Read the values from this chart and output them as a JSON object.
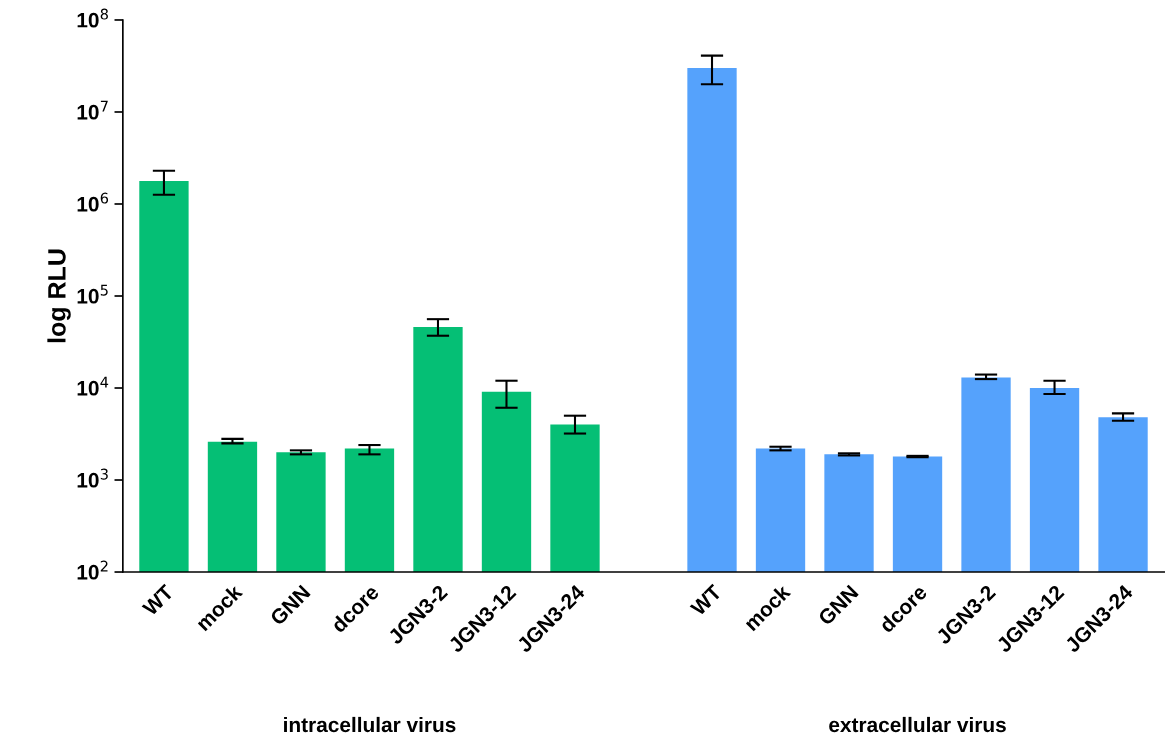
{
  "chart_data": {
    "type": "bar",
    "ylabel": "log RLU",
    "log": "y",
    "legend": false,
    "grid": false,
    "categories": [
      "WT",
      "mock",
      "GNN",
      "dcore",
      "JGN3-2",
      "JGN3-12",
      "JGN3-24",
      null,
      "WT",
      "mock",
      "GNN",
      "dcore",
      "JGN3-2",
      "JGN3-12",
      "JGN3-24"
    ],
    "ylim": [
      100,
      100000000
    ],
    "yticks": [
      {
        "value": 100,
        "label": "10$^{2}$"
      },
      {
        "value": 1000,
        "label": "10$^{3}$"
      },
      {
        "value": 10000,
        "label": "10$^{4}$"
      },
      {
        "value": 100000,
        "label": "10$^{5}$"
      },
      {
        "value": 1000000,
        "label": "10$^{6}$"
      },
      {
        "value": 10000000,
        "label": "10$^{7}$"
      },
      {
        "value": 100000000,
        "label": "10$^{8}$"
      }
    ],
    "series": [
      {
        "name": "intracellular virus",
        "color": "#05bf75",
        "values": [
          1780000,
          2600,
          2000,
          2200,
          46000,
          9100,
          4000,
          null,
          null,
          null,
          null,
          null,
          null,
          null,
          null
        ],
        "errors": [
          [
            1260000,
            2300000
          ],
          [
            2500,
            2800
          ],
          [
            1900,
            2100
          ],
          [
            1900,
            2400
          ],
          [
            37000,
            56000
          ],
          [
            6100,
            12000
          ],
          [
            3200,
            5000
          ],
          null,
          null,
          null,
          null,
          null,
          null,
          null,
          null
        ]
      },
      {
        "name": "extracellular virus",
        "color": "#55a2fc",
        "values": [
          null,
          null,
          null,
          null,
          null,
          null,
          null,
          null,
          30000000,
          2200,
          1900,
          1800,
          13000,
          10000,
          4800
        ],
        "errors": [
          null,
          null,
          null,
          null,
          null,
          null,
          null,
          null,
          [
            20000000,
            41000000
          ],
          [
            2100,
            2300
          ],
          [
            1850,
            1950
          ],
          [
            1770,
            1830
          ],
          [
            12500,
            14000
          ],
          [
            8600,
            12000
          ],
          [
            4400,
            5300
          ]
        ]
      }
    ]
  }
}
